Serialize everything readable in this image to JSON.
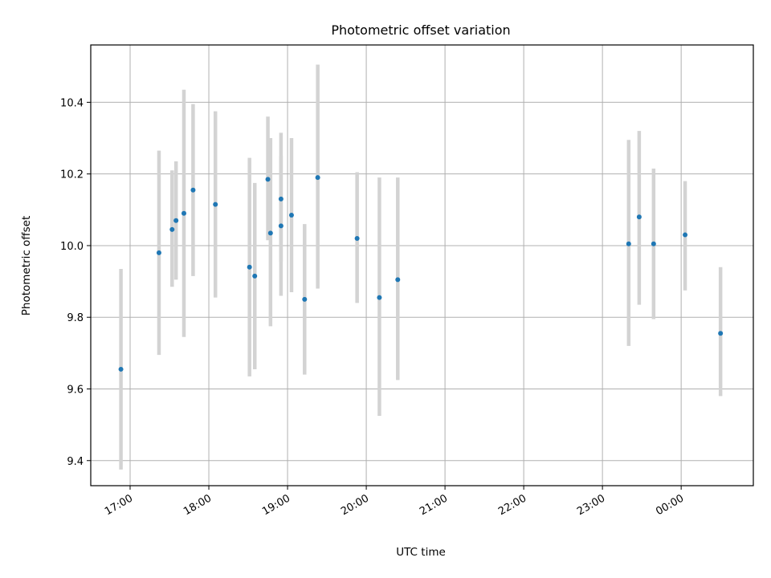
{
  "chart_data": {
    "type": "scatter",
    "title": "Photometric offset variation",
    "xlabel": "UTC time",
    "ylabel": "Photometric offset",
    "x_unit": "UTC time (HH:MM)",
    "xlim": [
      "16:30",
      "00:55"
    ],
    "ylim": [
      9.33,
      10.56
    ],
    "grid": true,
    "legend": "none",
    "x_ticks": [
      "17:00",
      "18:00",
      "19:00",
      "20:00",
      "21:00",
      "22:00",
      "23:00",
      "00:00"
    ],
    "y_ticks": [
      9.4,
      9.6,
      9.8,
      10.0,
      10.2,
      10.4
    ],
    "y_tick_labels": [
      "9.4",
      "9.6",
      "9.8",
      "10.0",
      "10.2",
      "10.4"
    ],
    "colors": {
      "point": "#1f77b4",
      "errorbar": "#d3d3d3",
      "grid": "#b0b0b0"
    },
    "points": [
      {
        "x": "16:53",
        "y": 9.655,
        "lo": 9.375,
        "hi": 9.935
      },
      {
        "x": "17:22",
        "y": 9.98,
        "lo": 9.695,
        "hi": 10.265
      },
      {
        "x": "17:32",
        "y": 10.045,
        "lo": 9.885,
        "hi": 10.21
      },
      {
        "x": "17:35",
        "y": 10.07,
        "lo": 9.905,
        "hi": 10.235
      },
      {
        "x": "17:41",
        "y": 10.09,
        "lo": 9.745,
        "hi": 10.435
      },
      {
        "x": "17:48",
        "y": 10.155,
        "lo": 9.915,
        "hi": 10.395
      },
      {
        "x": "18:05",
        "y": 10.115,
        "lo": 9.855,
        "hi": 10.375
      },
      {
        "x": "18:31",
        "y": 9.94,
        "lo": 9.635,
        "hi": 10.245
      },
      {
        "x": "18:35",
        "y": 9.915,
        "lo": 9.655,
        "hi": 10.175
      },
      {
        "x": "18:45",
        "y": 10.185,
        "lo": 10.015,
        "hi": 10.36
      },
      {
        "x": "18:47",
        "y": 10.035,
        "lo": 9.775,
        "hi": 10.3
      },
      {
        "x": "18:55",
        "y": 10.13,
        "lo": 9.955,
        "hi": 10.315
      },
      {
        "x": "18:55",
        "y": 10.055,
        "lo": 9.86,
        "hi": 10.25
      },
      {
        "x": "19:03",
        "y": 10.085,
        "lo": 9.87,
        "hi": 10.3
      },
      {
        "x": "19:13",
        "y": 9.85,
        "lo": 9.64,
        "hi": 10.06
      },
      {
        "x": "19:23",
        "y": 10.19,
        "lo": 9.88,
        "hi": 10.505
      },
      {
        "x": "19:53",
        "y": 10.02,
        "lo": 9.84,
        "hi": 10.205
      },
      {
        "x": "20:10",
        "y": 9.855,
        "lo": 9.525,
        "hi": 10.19
      },
      {
        "x": "20:24",
        "y": 9.905,
        "lo": 9.625,
        "hi": 10.19
      },
      {
        "x": "23:20",
        "y": 10.005,
        "lo": 9.72,
        "hi": 10.295
      },
      {
        "x": "23:28",
        "y": 10.08,
        "lo": 9.835,
        "hi": 10.32
      },
      {
        "x": "23:39",
        "y": 10.005,
        "lo": 9.795,
        "hi": 10.215
      },
      {
        "x": "00:03",
        "y": 10.03,
        "lo": 9.875,
        "hi": 10.18
      },
      {
        "x": "00:30",
        "y": 9.755,
        "lo": 9.58,
        "hi": 9.94
      }
    ]
  }
}
